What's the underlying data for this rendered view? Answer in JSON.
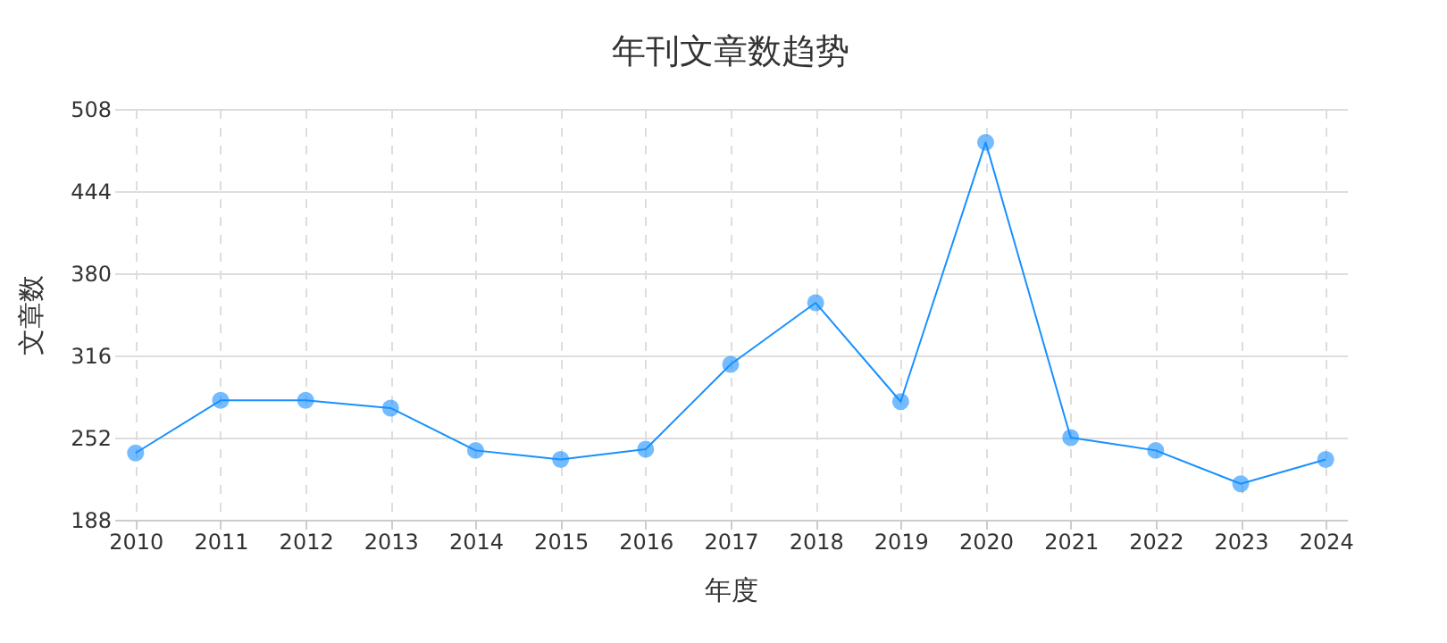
{
  "chart_data": {
    "type": "line",
    "title": "年刊文章数趋势",
    "xlabel": "年度",
    "ylabel": "文章数",
    "categories": [
      "2010",
      "2011",
      "2012",
      "2013",
      "2014",
      "2015",
      "2016",
      "2017",
      "2018",
      "2019",
      "2020",
      "2021",
      "2022",
      "2023",
      "2024"
    ],
    "series": [
      {
        "color": "#1890ff",
        "values": [
          240,
          281,
          281,
          275,
          242,
          235,
          243,
          309,
          357,
          280,
          482,
          252,
          242,
          216,
          235
        ]
      }
    ],
    "ylim": [
      188,
      508
    ],
    "yticks": [
      188,
      252,
      316,
      380,
      444,
      508
    ],
    "grid": true,
    "marker": "circle",
    "line_style": "solid"
  }
}
